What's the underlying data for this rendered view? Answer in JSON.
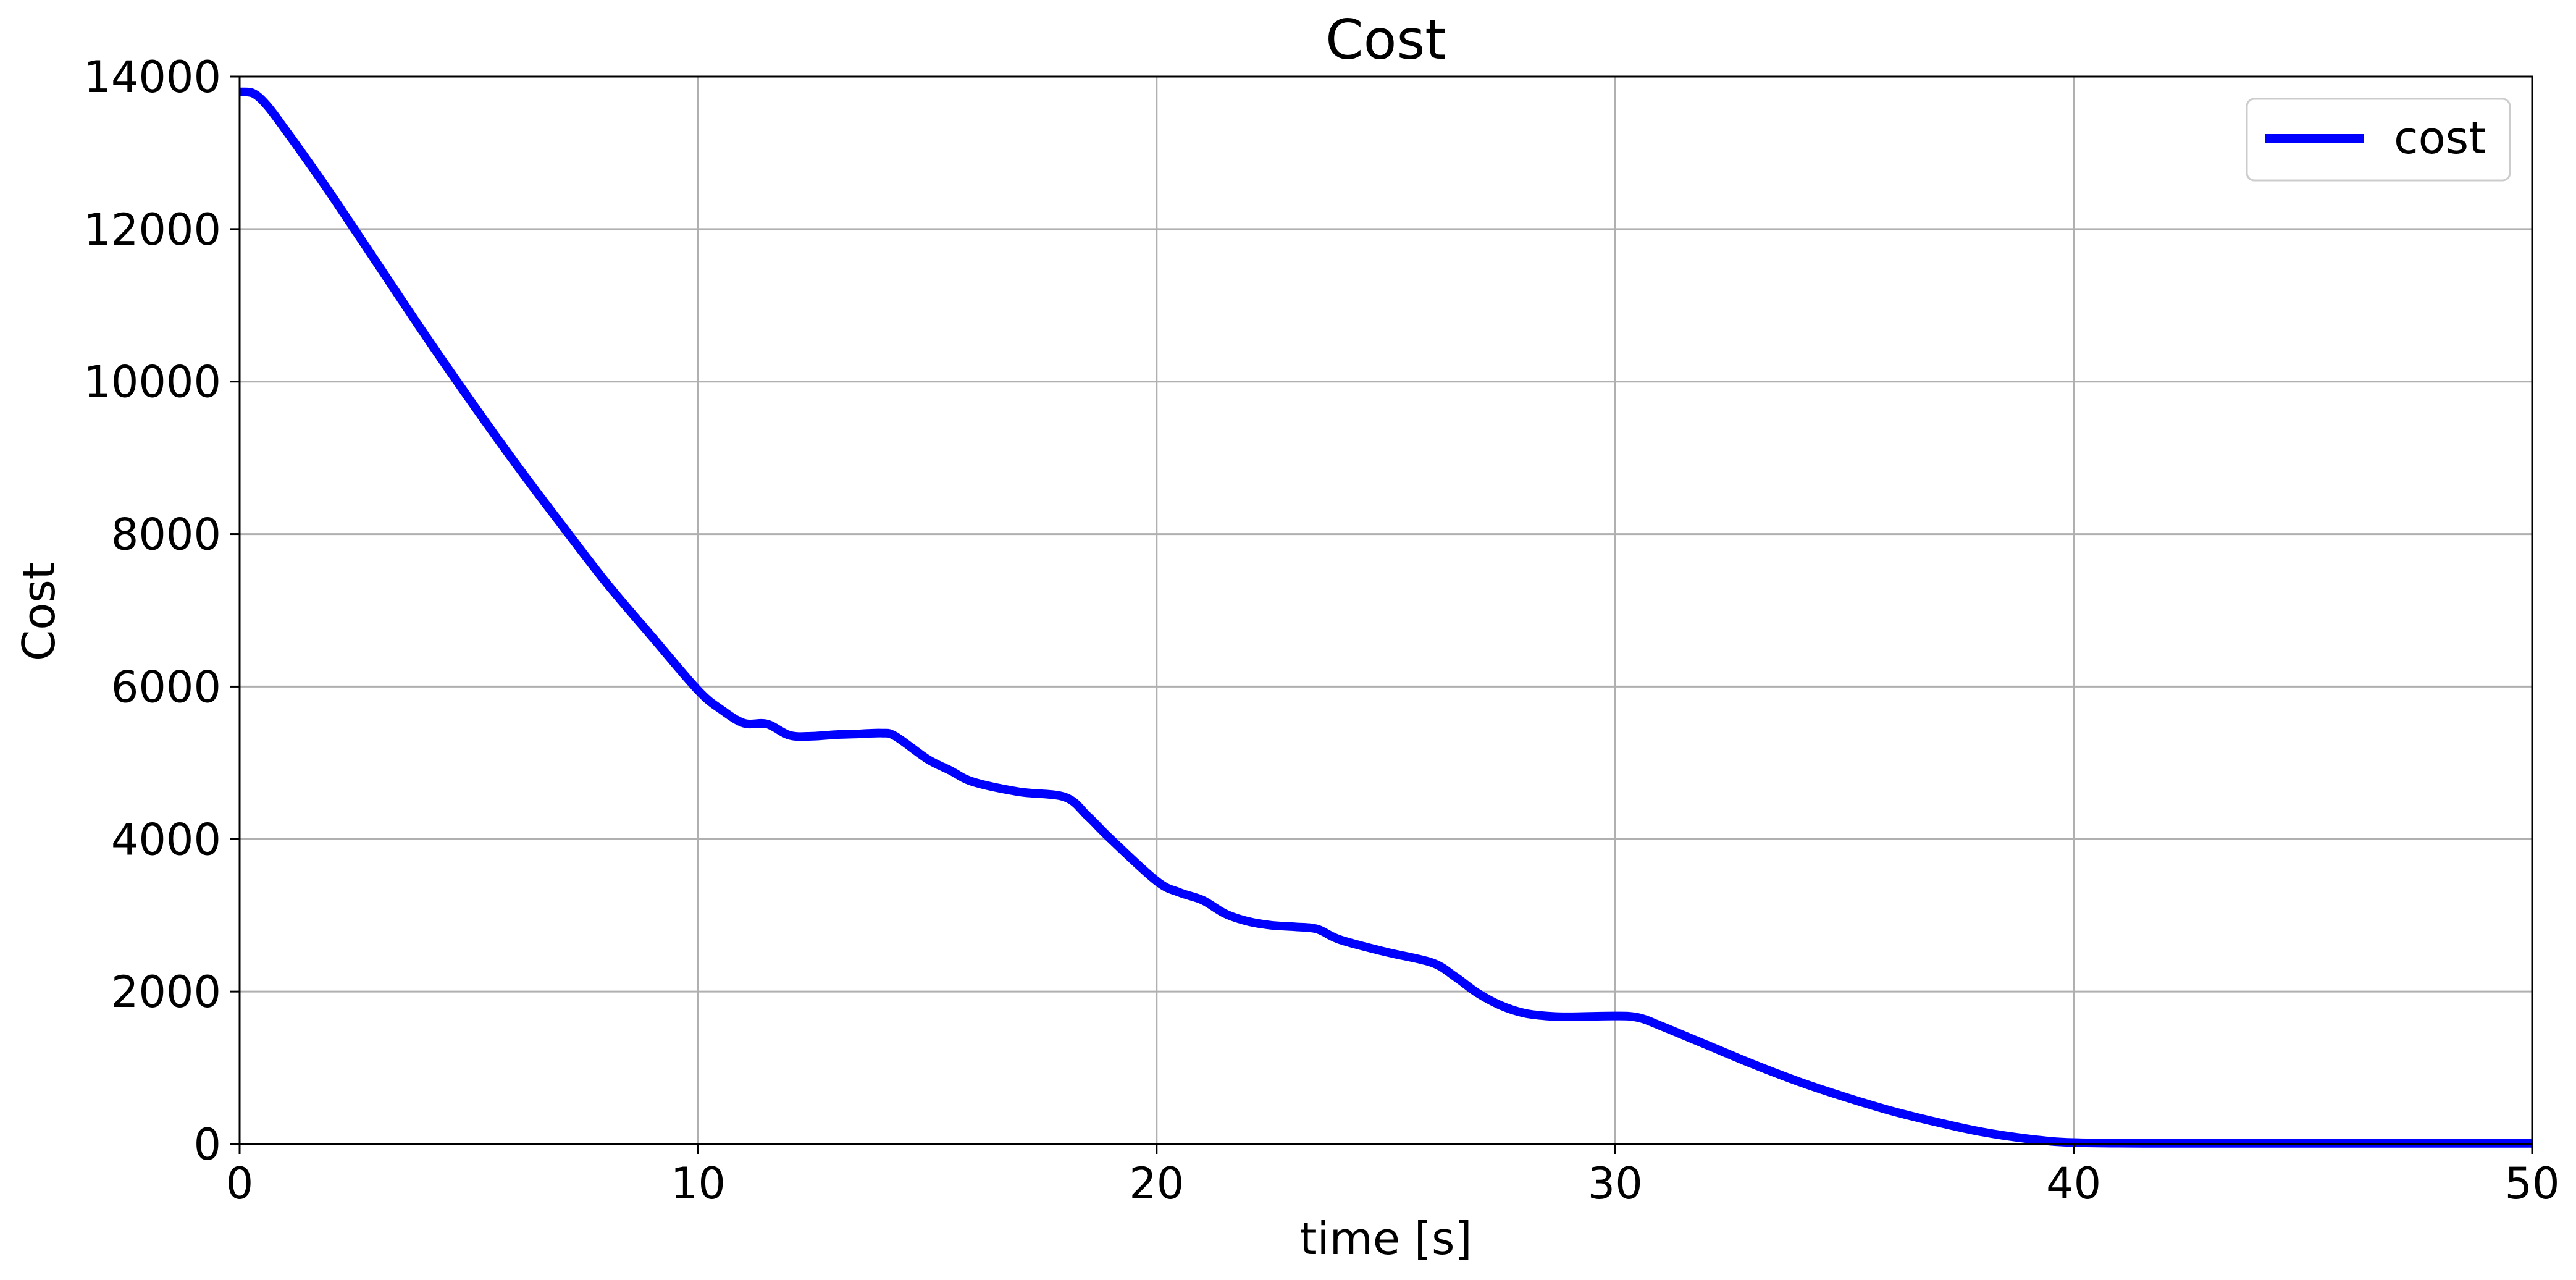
{
  "chart_data": {
    "type": "line",
    "title": "Cost",
    "xlabel": "time [s]",
    "ylabel": "Cost",
    "xlim": [
      0,
      50
    ],
    "ylim": [
      0,
      14000
    ],
    "xticks": [
      0,
      10,
      20,
      30,
      40,
      50
    ],
    "yticks": [
      0,
      2000,
      4000,
      6000,
      8000,
      10000,
      12000,
      14000
    ],
    "grid": true,
    "legend": {
      "position": "top-right",
      "entries": [
        "cost"
      ]
    },
    "series": [
      {
        "name": "cost",
        "color": "#0000ff",
        "x": [
          0,
          0.3,
          0.6,
          1,
          1.5,
          2,
          3,
          4,
          5,
          6,
          7,
          8,
          9,
          10,
          10.5,
          11,
          11.5,
          12,
          12.5,
          13,
          13.5,
          14,
          14.3,
          15,
          15.5,
          16,
          17,
          18,
          18.5,
          19,
          20,
          20.5,
          21,
          21.5,
          22,
          22.5,
          23,
          23.5,
          24,
          25,
          26,
          26.5,
          27,
          27.5,
          28,
          28.5,
          29,
          30,
          30.5,
          31,
          32,
          33,
          34,
          35,
          36,
          37,
          38,
          39,
          40,
          42,
          45,
          50
        ],
        "y": [
          13800,
          13780,
          13620,
          13300,
          12880,
          12450,
          11550,
          10650,
          9780,
          8940,
          8140,
          7360,
          6650,
          5950,
          5700,
          5520,
          5510,
          5360,
          5350,
          5370,
          5380,
          5390,
          5350,
          5050,
          4900,
          4750,
          4620,
          4550,
          4300,
          4000,
          3450,
          3300,
          3200,
          3020,
          2920,
          2870,
          2850,
          2820,
          2680,
          2520,
          2380,
          2200,
          1980,
          1820,
          1720,
          1680,
          1670,
          1680,
          1660,
          1550,
          1300,
          1050,
          820,
          620,
          440,
          290,
          160,
          70,
          20,
          10,
          10,
          10
        ]
      }
    ]
  }
}
